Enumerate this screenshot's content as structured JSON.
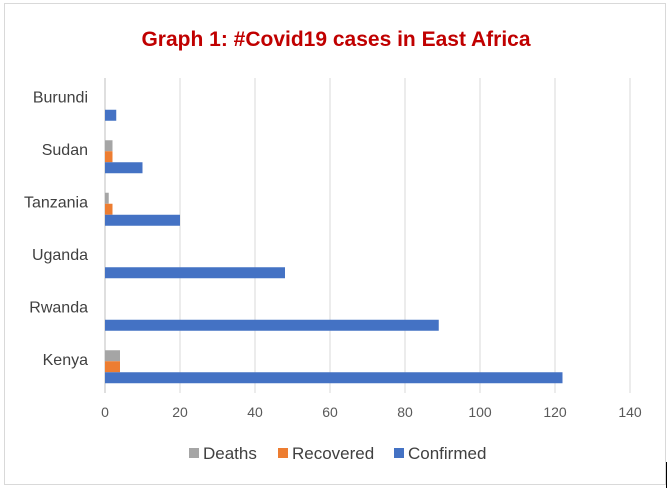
{
  "chart_data": {
    "type": "bar",
    "orientation": "horizontal",
    "title": "Graph 1: #Covid19 cases in East Africa",
    "title_color": "#c00000",
    "categories": [
      "Kenya",
      "Rwanda",
      "Uganda",
      "Tanzania",
      "Sudan",
      "Burundi"
    ],
    "series": [
      {
        "name": "Deaths",
        "color": "#a5a5a5",
        "values": [
          4,
          0,
          0,
          1,
          2,
          0
        ]
      },
      {
        "name": "Recovered",
        "color": "#ed7d31",
        "values": [
          4,
          0,
          0,
          2,
          2,
          0
        ]
      },
      {
        "name": "Confirmed",
        "color": "#4472c4",
        "values": [
          122,
          89,
          48,
          20,
          10,
          3
        ]
      }
    ],
    "xlim": [
      0,
      140
    ],
    "xticks": [
      "0",
      "20",
      "40",
      "60",
      "80",
      "100",
      "120",
      "140"
    ],
    "grid": true,
    "legend_position": "bottom"
  }
}
